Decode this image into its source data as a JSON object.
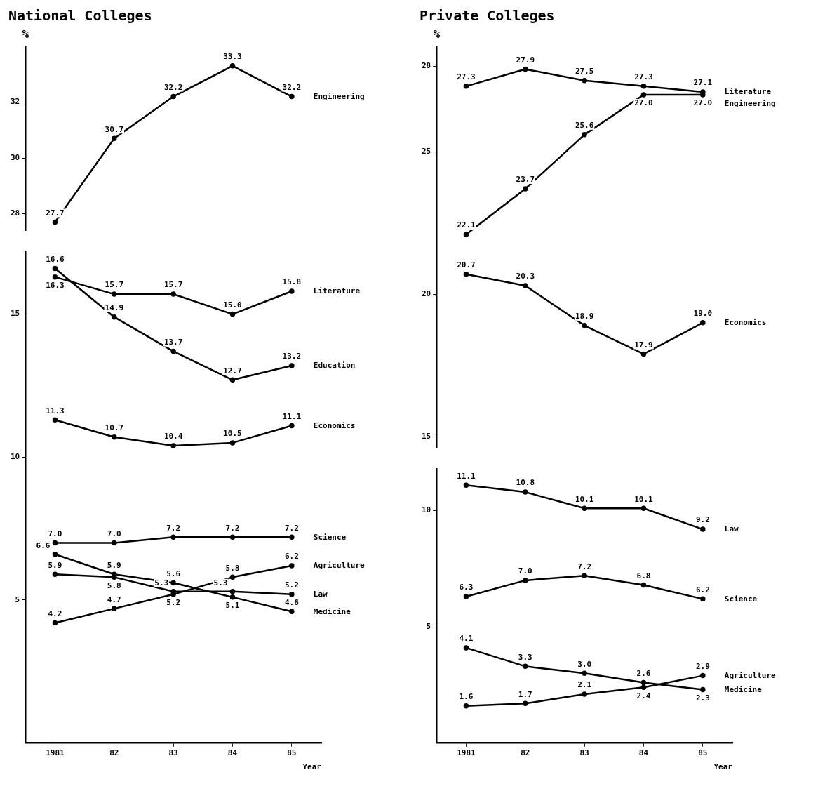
{
  "chart_data": [
    {
      "type": "line",
      "title": "National Colleges",
      "ylabel": "%",
      "categories": [
        "1981",
        "82",
        "83",
        "84",
        "85"
      ],
      "ylim": [
        27.4,
        34
      ],
      "yticks": [
        28,
        30,
        32
      ],
      "tick_labels": "y",
      "grid": false,
      "legend": false,
      "marker": "circle",
      "series": [
        {
          "name": "Engineering",
          "color": "#000000",
          "values": [
            27.7,
            30.7,
            32.2,
            33.3,
            32.2
          ],
          "value_labels": [
            "27.7",
            "30.7",
            "32.2",
            "33.3",
            "32.2"
          ]
        }
      ]
    },
    {
      "type": "line",
      "xlabel": "Year",
      "categories": [
        "1981",
        "82",
        "83",
        "84",
        "85"
      ],
      "ylim": [
        0,
        17.2
      ],
      "yticks": [
        5,
        10,
        15
      ],
      "grid": false,
      "legend": false,
      "marker": "circle",
      "series": [
        {
          "name": "Literature",
          "color": "#000000",
          "values": [
            16.3,
            15.7,
            15.7,
            15.0,
            15.8
          ],
          "value_labels": [
            "16.3",
            "15.7",
            "15.7",
            "15.0",
            "15.8"
          ]
        },
        {
          "name": "Education",
          "color": "#000000",
          "values": [
            16.6,
            14.9,
            13.7,
            12.7,
            13.2
          ],
          "value_labels": [
            "16.6",
            "14.9",
            "13.7",
            "12.7",
            "13.2"
          ]
        },
        {
          "name": "Economics",
          "color": "#000000",
          "values": [
            11.3,
            10.7,
            10.4,
            10.5,
            11.1
          ],
          "value_labels": [
            "11.3",
            "10.7",
            "10.4",
            "10.5",
            "11.1"
          ]
        },
        {
          "name": "Science",
          "color": "#000000",
          "values": [
            7.0,
            7.0,
            7.2,
            7.2,
            7.2
          ],
          "value_labels": [
            "7.0",
            "7.0",
            "7.2",
            "7.2",
            "7.2"
          ]
        },
        {
          "name": "Agriculture",
          "color": "#000000",
          "values": [
            4.2,
            4.7,
            5.2,
            5.8,
            6.2
          ],
          "value_labels": [
            "4.2",
            "4.7",
            "5.2",
            "5.8",
            "6.2"
          ]
        },
        {
          "name": "Law",
          "color": "#000000",
          "values": [
            5.9,
            5.8,
            5.3,
            5.3,
            5.2
          ],
          "value_labels": [
            "5.9",
            "5.8",
            "5.3",
            "5.3",
            "5.2"
          ]
        },
        {
          "name": "Medicine",
          "color": "#000000",
          "values": [
            6.6,
            5.9,
            5.6,
            5.1,
            4.6
          ],
          "value_labels": [
            "6.6",
            "5.9",
            "5.6",
            "5.1",
            "4.6"
          ]
        }
      ]
    },
    {
      "type": "line",
      "title": "Private Colleges",
      "ylabel": "%",
      "categories": [
        "1981",
        "82",
        "83",
        "84",
        "85"
      ],
      "ylim": [
        14.6,
        28.7
      ],
      "yticks": [
        15,
        20,
        25,
        28
      ],
      "tick_labels": "y",
      "grid": false,
      "legend": false,
      "marker": "circle",
      "series": [
        {
          "name": "Literature",
          "color": "#000000",
          "values": [
            27.3,
            27.9,
            27.5,
            27.3,
            27.1
          ],
          "value_labels": [
            "27.3",
            "27.9",
            "27.5",
            "27.3",
            "27.1"
          ]
        },
        {
          "name": "Engineering",
          "color": "#000000",
          "values": [
            22.1,
            23.7,
            25.6,
            27.0,
            27.0
          ],
          "value_labels": [
            "22.1",
            "23.7",
            "25.6",
            "27.0",
            "27.0"
          ]
        },
        {
          "name": "Economics",
          "color": "#000000",
          "values": [
            20.7,
            20.3,
            18.9,
            17.9,
            19.0
          ],
          "value_labels": [
            "20.7",
            "20.3",
            "18.9",
            "17.9",
            "19.0"
          ]
        }
      ]
    },
    {
      "type": "line",
      "xlabel": "Year",
      "categories": [
        "1981",
        "82",
        "83",
        "84",
        "85"
      ],
      "ylim": [
        0,
        11.8
      ],
      "yticks": [
        5,
        10
      ],
      "grid": false,
      "legend": false,
      "marker": "circle",
      "series": [
        {
          "name": "Law",
          "color": "#000000",
          "values": [
            11.1,
            10.8,
            10.1,
            10.1,
            9.2
          ],
          "value_labels": [
            "11.1",
            "10.8",
            "10.1",
            "10.1",
            "9.2"
          ]
        },
        {
          "name": "Science",
          "color": "#000000",
          "values": [
            6.3,
            7.0,
            7.2,
            6.8,
            6.2
          ],
          "value_labels": [
            "6.3",
            "7.0",
            "7.2",
            "6.8",
            "6.2"
          ]
        },
        {
          "name": "Agriculture",
          "color": "#000000",
          "values": [
            1.6,
            1.7,
            2.1,
            2.4,
            2.9
          ],
          "value_labels": [
            "1.6",
            "1.7",
            "2.1",
            "2.4",
            "2.9"
          ]
        },
        {
          "name": "Medicine",
          "color": "#000000",
          "values": [
            4.1,
            3.3,
            3.0,
            2.6,
            2.3
          ],
          "value_labels": [
            "4.1",
            "3.3",
            "3.0",
            "2.6",
            "2.3"
          ]
        }
      ]
    }
  ]
}
